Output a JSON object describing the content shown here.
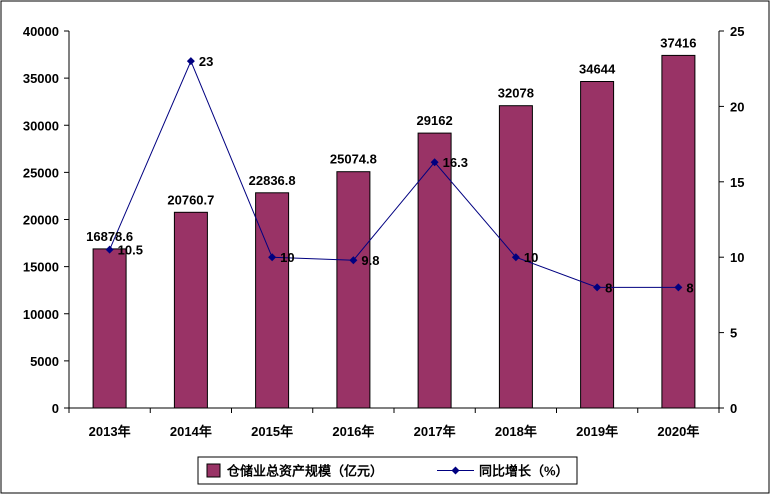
{
  "chart_data": {
    "type": "bar",
    "categories": [
      "2013年",
      "2014年",
      "2015年",
      "2016年",
      "2017年",
      "2018年",
      "2019年",
      "2020年"
    ],
    "series": [
      {
        "name": "仓储业总资产规模（亿元）",
        "type": "bar",
        "axis": "left",
        "color": "#993366",
        "values": [
          16878.6,
          20760.7,
          22836.8,
          25074.8,
          29162,
          32078,
          34644,
          37416
        ],
        "labels": [
          "16878.6",
          "20760.7",
          "22836.8",
          "25074.8",
          "29162",
          "32078",
          "34644",
          "37416"
        ]
      },
      {
        "name": "同比增长（%）",
        "type": "line",
        "axis": "right",
        "color": "#000080",
        "marker": "diamond",
        "values": [
          10.5,
          23,
          10,
          9.8,
          16.3,
          10,
          8,
          8
        ],
        "labels": [
          "10.5",
          "23",
          "10",
          "9.8",
          "16.3",
          "10",
          "8",
          "8"
        ]
      }
    ],
    "y_left": {
      "lim": [
        0,
        40000
      ],
      "ticks": [
        0,
        5000,
        10000,
        15000,
        20000,
        25000,
        30000,
        35000,
        40000
      ],
      "tick_labels": [
        "0",
        "5000",
        "10000",
        "15000",
        "20000",
        "25000",
        "30000",
        "35000",
        "40000"
      ]
    },
    "y_right": {
      "lim": [
        0,
        25
      ],
      "ticks": [
        0,
        5,
        10,
        15,
        20,
        25
      ],
      "tick_labels": [
        "0",
        "5",
        "10",
        "15",
        "20",
        "25"
      ]
    },
    "grid": false,
    "legend": "bottom"
  }
}
